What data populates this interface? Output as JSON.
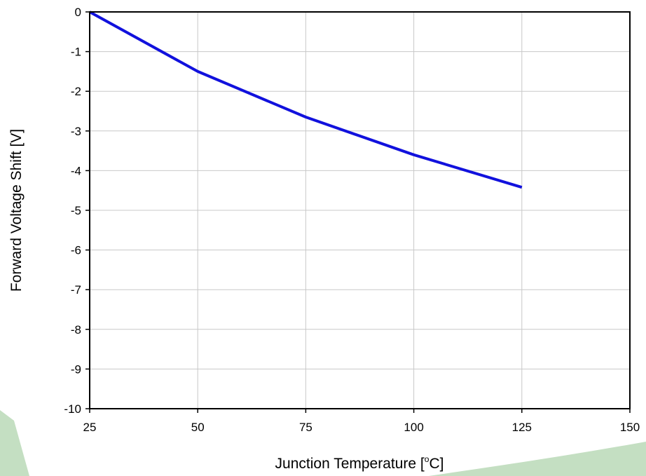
{
  "chart_data": {
    "type": "line",
    "title": "",
    "xlabel": "Junction Temperature [",
    "xlabel_sup": "o",
    "xlabel_tail": "C]",
    "ylabel": "Forward Voltage Shift [V]",
    "xlim": [
      25,
      150
    ],
    "ylim": [
      -10,
      0
    ],
    "xticks": [
      25,
      50,
      75,
      100,
      125,
      150
    ],
    "yticks": [
      0,
      -1,
      -2,
      -3,
      -4,
      -5,
      -6,
      -7,
      -8,
      -9,
      -10
    ],
    "grid": true,
    "series": [
      {
        "color": "#1111dd",
        "x": [
          25,
          50,
          75,
          100,
          125
        ],
        "y": [
          0,
          -1.5,
          -2.65,
          -3.6,
          -4.42
        ]
      }
    ]
  },
  "colors": {
    "background": "#ffffff",
    "grid": "#c8c8c8",
    "axis": "#000000",
    "decor_green": "#c4dfc2"
  }
}
